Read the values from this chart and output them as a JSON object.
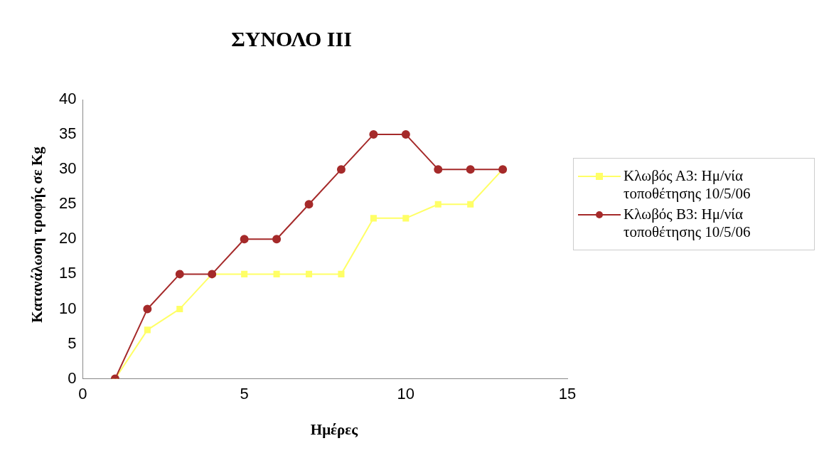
{
  "chart_data": {
    "type": "line",
    "title": "ΣΥΝΟΛΟ ΙΙΙ",
    "xlabel": "Ημέρες",
    "ylabel": "Κατανάλωση τροφής σε Kg",
    "x": [
      1,
      2,
      3,
      4,
      5,
      6,
      7,
      8,
      9,
      10,
      11,
      12,
      13
    ],
    "xlim": [
      0,
      15
    ],
    "xticks": [
      0,
      5,
      10,
      15
    ],
    "ylim": [
      0,
      40
    ],
    "yticks": [
      0,
      5,
      10,
      15,
      20,
      25,
      30,
      35,
      40
    ],
    "grid": false,
    "legend": "right",
    "line_style": "solid",
    "series": [
      {
        "name": "Κλωβός Α3: Ημ/νία τοποθέτησης 10/5/06",
        "color": "#ffff66",
        "marker": "square",
        "values": [
          0,
          7,
          10,
          15,
          15,
          15,
          15,
          15,
          23,
          23,
          25,
          25,
          30
        ]
      },
      {
        "name": "Κλωβός Β3: Ημ/νία τοποθέτησης 10/5/06",
        "color": "#a52a2a",
        "marker": "circle",
        "values": [
          0,
          10,
          15,
          15,
          20,
          20,
          25,
          30,
          35,
          35,
          30,
          30,
          30
        ]
      }
    ]
  }
}
